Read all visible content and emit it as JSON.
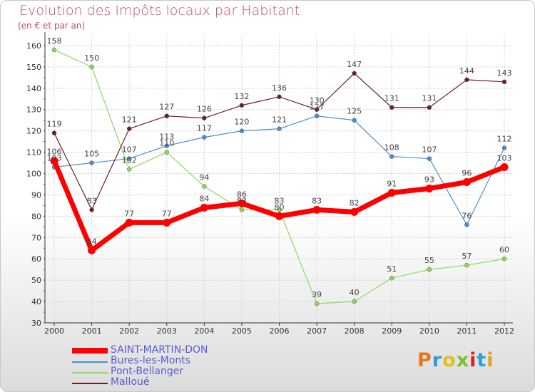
{
  "colors": {
    "title": "#c44a70",
    "axis": "#333333",
    "grid": "#d0d0d0",
    "series": [
      "#ff0000",
      "#4a8fd0",
      "#8fd85a",
      "#6e2020"
    ],
    "legend_text": "#5a5ad4"
  },
  "logo": {
    "text": [
      "P",
      "r",
      "o",
      "x",
      "i",
      "t",
      "i"
    ],
    "colors": [
      "#e07a1a",
      "#2aa0d8",
      "#e0c020",
      "#7ac030",
      "#e02020",
      "#2aa0d8",
      "#e0a020"
    ]
  },
  "chart_data": {
    "type": "line",
    "title": "Evolution des Impôts locaux par Habitant",
    "subtitle": "(en € et par an)",
    "x": [
      "2000",
      "2001",
      "2002",
      "2003",
      "2004",
      "2005",
      "2006",
      "2007",
      "2008",
      "2009",
      "2010",
      "2011",
      "2012"
    ],
    "ylim": [
      30,
      165
    ],
    "yticks": [
      30,
      40,
      50,
      60,
      70,
      80,
      90,
      100,
      110,
      120,
      130,
      140,
      150,
      160
    ],
    "grid": true,
    "legend_position": "bottom-left",
    "series": [
      {
        "name": "SAINT-MARTIN-DON",
        "values": [
          106,
          64,
          77,
          77,
          84,
          86,
          80,
          83,
          82,
          91,
          93,
          96,
          103
        ]
      },
      {
        "name": "Bures-les-Monts",
        "values": [
          103,
          105,
          107,
          113,
          117,
          120,
          121,
          127,
          125,
          108,
          107,
          76,
          112
        ]
      },
      {
        "name": "Pont-Bellanger",
        "values": [
          158,
          150,
          102,
          110,
          94,
          83,
          83,
          39,
          40,
          51,
          55,
          57,
          60
        ]
      },
      {
        "name": "Malloué",
        "values": [
          119,
          83,
          121,
          127,
          126,
          132,
          136,
          130,
          147,
          131,
          131,
          144,
          143
        ]
      }
    ]
  }
}
